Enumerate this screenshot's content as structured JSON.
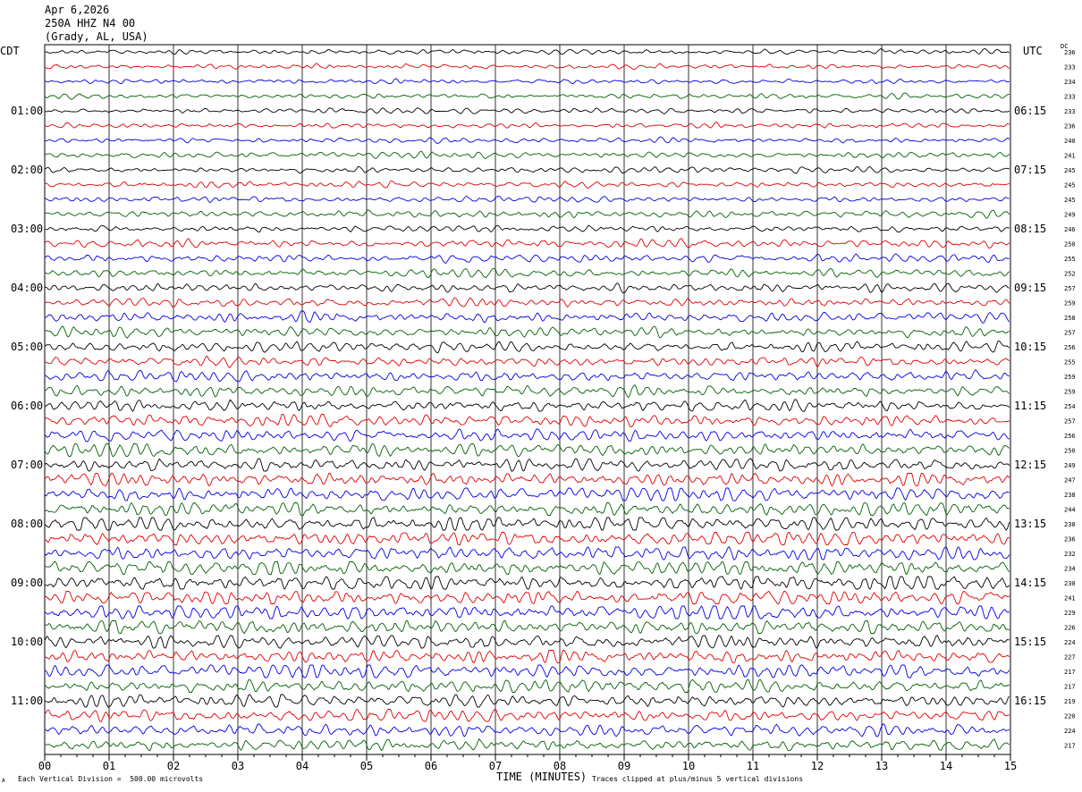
{
  "header": {
    "date": "Apr 6,2026",
    "station": "250A HHZ N4 00",
    "location": "(Grady, AL, USA)"
  },
  "left_zone": "CDT",
  "right_zone": "UTC",
  "dc_label": "DC",
  "footer": {
    "scale_note": "Each Vertical Division =  500.00 microvolts",
    "axis_title": "TIME (MINUTES)",
    "clip_note": "Traces clipped at plus/minus 5 vertical divisions",
    "small_mark": "A"
  },
  "colors": {
    "trace_cycle": [
      "#000000",
      "#e00000",
      "#0000e0",
      "#006000"
    ],
    "grid": "#000000"
  },
  "chart_data": {
    "type": "line",
    "xlabel": "TIME (MINUTES)",
    "xlim": [
      0,
      15
    ],
    "x_ticks": [
      "00",
      "01",
      "02",
      "03",
      "04",
      "05",
      "06",
      "07",
      "08",
      "09",
      "10",
      "11",
      "12",
      "13",
      "14",
      "15"
    ],
    "rows_per_hour": 4,
    "left_hour_labels": [
      "01:00",
      "02:00",
      "03:00",
      "04:00",
      "05:00",
      "06:00",
      "07:00",
      "08:00",
      "09:00",
      "10:00",
      "11:00"
    ],
    "right_hour_labels": [
      "06:15",
      "07:15",
      "08:15",
      "09:15",
      "10:15",
      "11:15",
      "12:15",
      "13:15",
      "14:15",
      "15:15",
      "16:15"
    ],
    "dc_offsets": [
      236,
      233,
      234,
      233,
      233,
      236,
      240,
      241,
      245,
      245,
      245,
      249,
      246,
      250,
      255,
      252,
      257,
      259,
      258,
      257,
      256,
      255,
      259,
      259,
      254,
      257,
      256,
      250,
      249,
      247,
      238,
      244,
      238,
      236,
      232,
      234,
      230,
      241,
      229,
      226,
      224,
      227,
      217,
      217,
      219,
      220,
      224,
      217
    ],
    "trace_amplitude_levels": [
      0.5,
      0.5,
      0.5,
      0.5,
      0.5,
      0.5,
      0.5,
      0.6,
      0.6,
      0.6,
      0.6,
      0.7,
      0.7,
      0.8,
      0.8,
      0.8,
      0.9,
      0.9,
      1.0,
      1.0,
      1.0,
      1.0,
      1.1,
      1.1,
      1.2,
      1.2,
      1.2,
      1.3,
      1.3,
      1.4,
      1.4,
      1.4,
      1.5,
      1.5,
      1.5,
      1.6,
      1.6,
      1.5,
      1.5,
      1.5,
      1.4,
      1.4,
      1.4,
      1.3,
      1.3,
      1.3,
      1.2,
      1.2
    ]
  }
}
